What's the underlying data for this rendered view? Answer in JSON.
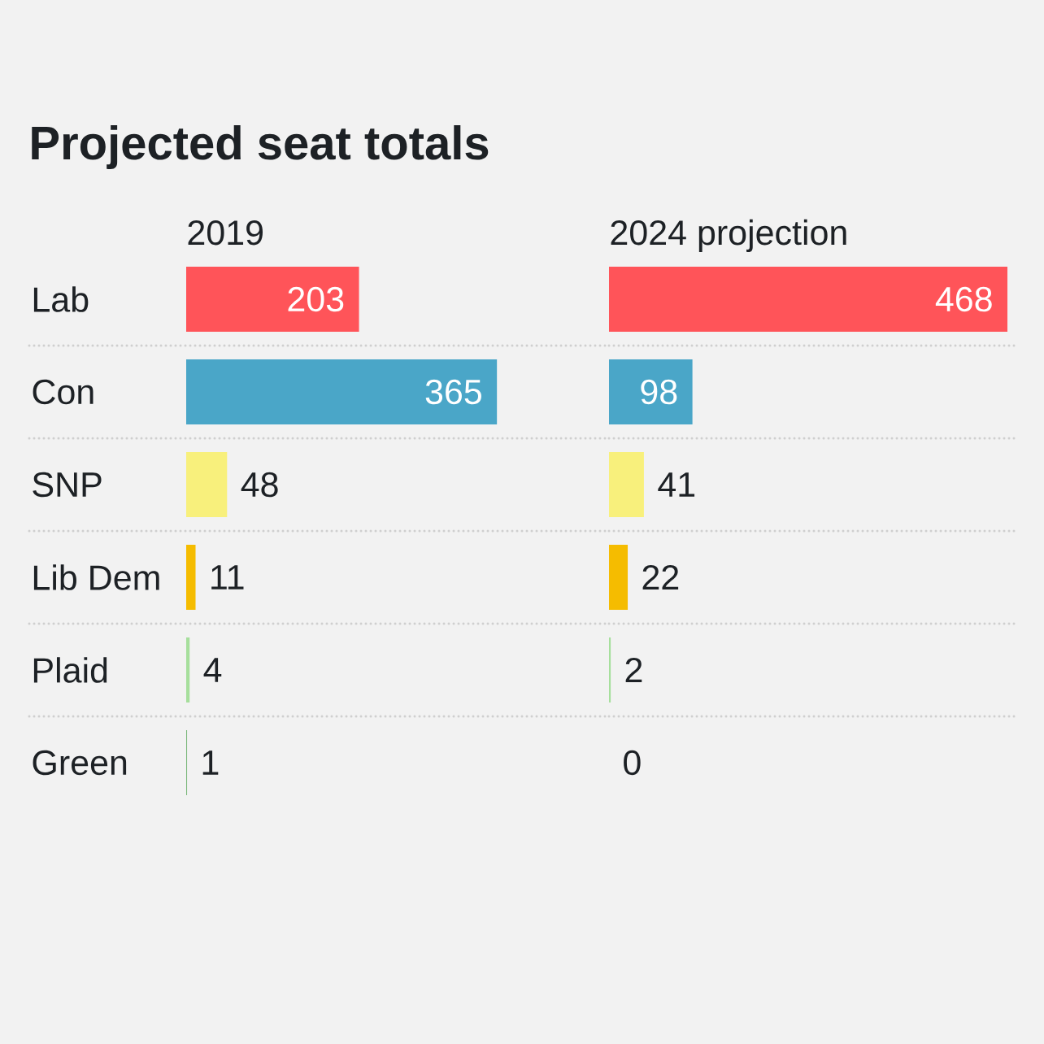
{
  "chart_data": [
    {
      "type": "bar",
      "orientation": "horizontal",
      "title": "Projected seat totals",
      "subtitle": "2019",
      "categories": [
        "Lab",
        "Con",
        "SNP",
        "Lib Dem",
        "Plaid",
        "Green"
      ],
      "values": [
        203,
        365,
        48,
        11,
        4,
        1
      ],
      "colors": [
        "#ff5459",
        "#4aa6c8",
        "#f8f07c",
        "#f5bc00",
        "#a6df9c",
        "#7ab87a"
      ],
      "data_labels": true,
      "grid": "y",
      "tick_labels": "y"
    },
    {
      "type": "bar",
      "orientation": "horizontal",
      "subtitle": "2024 projection",
      "categories": [
        null,
        null,
        null,
        null,
        null,
        null
      ],
      "values": [
        468,
        98,
        41,
        22,
        2,
        0
      ],
      "colors": [
        "#ff5459",
        "#4aa6c8",
        "#f8f07c",
        "#f5bc00",
        "#a6df9c",
        "#7ab87a"
      ],
      "data_labels": true,
      "grid": "y"
    }
  ]
}
